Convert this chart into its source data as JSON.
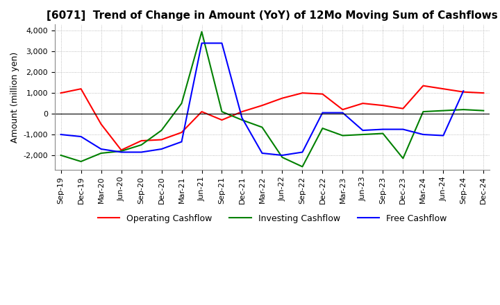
{
  "title": "[6071]  Trend of Change in Amount (YoY) of 12Mo Moving Sum of Cashflows",
  "ylabel": "Amount (million yen)",
  "x_labels": [
    "Sep-19",
    "Dec-19",
    "Mar-20",
    "Jun-20",
    "Sep-20",
    "Dec-20",
    "Mar-21",
    "Jun-21",
    "Sep-21",
    "Dec-21",
    "Mar-22",
    "Jun-22",
    "Sep-22",
    "Dec-22",
    "Mar-23",
    "Jun-23",
    "Sep-23",
    "Dec-23",
    "Mar-24",
    "Jun-24",
    "Sep-24",
    "Dec-24"
  ],
  "operating": [
    1000,
    1200,
    -500,
    -1750,
    -1300,
    -1250,
    -900,
    100,
    -300,
    100,
    400,
    750,
    1000,
    950,
    200,
    500,
    400,
    250,
    1350,
    1200,
    1050,
    1000
  ],
  "investing": [
    -2000,
    -2300,
    -1900,
    -1800,
    -1500,
    -800,
    500,
    3950,
    100,
    -300,
    -650,
    -2100,
    -2550,
    -700,
    -1050,
    -1000,
    -950,
    -2150,
    100,
    150,
    200,
    150
  ],
  "free": [
    -1000,
    -1100,
    -1700,
    -1850,
    -1850,
    -1700,
    -1350,
    3400,
    3400,
    -200,
    -1900,
    -2000,
    -1850,
    50,
    50,
    -800,
    -750,
    -750,
    -1000,
    -1050,
    1100,
    null
  ],
  "ylim": [
    -2700,
    4300
  ],
  "yticks": [
    -2000,
    -1000,
    0,
    1000,
    2000,
    3000,
    4000
  ],
  "operating_color": "#ff0000",
  "investing_color": "#008000",
  "free_color": "#0000ff",
  "background_color": "#ffffff",
  "grid_color": "#aaaaaa",
  "grid_style": "dotted",
  "title_fontsize": 11,
  "tick_fontsize": 8,
  "legend_fontsize": 9
}
